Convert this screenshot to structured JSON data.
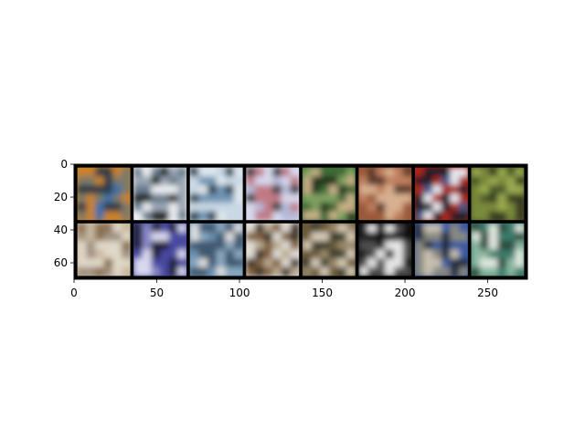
{
  "figure": {
    "kind": "image grid (matplotlib imshow)",
    "grid": {
      "rows": 2,
      "cols": 8,
      "border_color": "#000000"
    },
    "axes": {
      "x": {
        "range": [
          0,
          274
        ],
        "ticks": [
          0,
          50,
          100,
          150,
          200,
          250
        ]
      },
      "y": {
        "range": [
          0,
          70
        ],
        "ticks": [
          0,
          20,
          40,
          60
        ],
        "inverted": true
      }
    },
    "tiles": [
      {
        "id": "r1c1",
        "desc": "truck on road, orange background",
        "colors": [
          "#c8822a",
          "#3a6fa8",
          "#7a7a6a",
          "#2a3a4a"
        ]
      },
      {
        "id": "r1c2",
        "desc": "ship on water, light sky",
        "colors": [
          "#eaeef2",
          "#9aa6b2",
          "#1a1a1a",
          "#6a7c8c"
        ]
      },
      {
        "id": "r1c3",
        "desc": "ship on blue water",
        "colors": [
          "#c9d8e4",
          "#6f95b4",
          "#2a3a4c",
          "#e0e8ee"
        ]
      },
      {
        "id": "r1c4",
        "desc": "airplane in pale sky",
        "colors": [
          "#d7d8ec",
          "#b6b9d8",
          "#3a3a3a",
          "#c07a86"
        ]
      },
      {
        "id": "r1c5",
        "desc": "frog in green foliage",
        "colors": [
          "#3f6a35",
          "#7fa060",
          "#c8b088",
          "#22351d"
        ]
      },
      {
        "id": "r1c6",
        "desc": "animal on brown background",
        "colors": [
          "#9a5a3a",
          "#c08060",
          "#5a3a2a",
          "#d8b090"
        ]
      },
      {
        "id": "r1c7",
        "desc": "car on red background",
        "colors": [
          "#a82818",
          "#1a1a2a",
          "#e8e8f0",
          "#3a5a8a"
        ]
      },
      {
        "id": "r1c8",
        "desc": "frog on green-brown",
        "colors": [
          "#4a5a2a",
          "#7a8a3a",
          "#3a3a20",
          "#9aaa50"
        ]
      },
      {
        "id": "r2c1",
        "desc": "cat, light tones",
        "colors": [
          "#c8b8a0",
          "#e0d8c8",
          "#8a7050",
          "#a09080"
        ]
      },
      {
        "id": "r2c2",
        "desc": "truck, blue/purple",
        "colors": [
          "#4a4aa0",
          "#d8d8f0",
          "#1a1a30",
          "#8888c8"
        ]
      },
      {
        "id": "r2c3",
        "desc": "airplane on blue sky",
        "colors": [
          "#6a90b0",
          "#e0e0e0",
          "#8aa8c0",
          "#405870"
        ]
      },
      {
        "id": "r2c4",
        "desc": "truck, white/brown",
        "colors": [
          "#e0dcd4",
          "#806040",
          "#3a3028",
          "#b8a890"
        ]
      },
      {
        "id": "r2c5",
        "desc": "dog in field",
        "colors": [
          "#6a5a3a",
          "#d8ccb8",
          "#3a3a2a",
          "#9a8a6a"
        ]
      },
      {
        "id": "r2c6",
        "desc": "white horse on black",
        "colors": [
          "#101010",
          "#e8e8e8",
          "#505050",
          "#202020"
        ]
      },
      {
        "id": "r2c7",
        "desc": "blue truck",
        "colors": [
          "#3a5aa0",
          "#c8c0b0",
          "#1a2a40",
          "#8a8a80"
        ]
      },
      {
        "id": "r2c8",
        "desc": "car on teal-green",
        "colors": [
          "#3a7a6a",
          "#e0e8e0",
          "#2a4a3a",
          "#8ab8a0"
        ]
      }
    ]
  }
}
